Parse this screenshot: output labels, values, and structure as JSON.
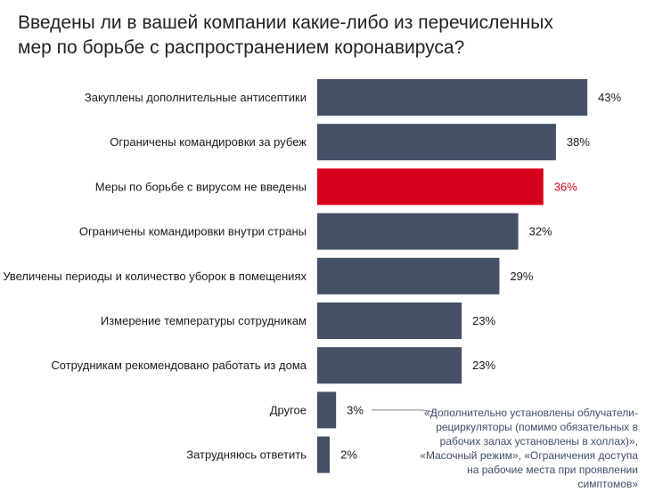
{
  "chart_data": {
    "type": "bar",
    "orientation": "horizontal",
    "title": "Введены ли в вашей компании какие-либо из перечисленных мер по борьбе с распространением коронавируса?",
    "categories": [
      "Закуплены дополнительные антисептики",
      "Ограничены командировки за рубеж",
      "Меры по борьбе с вирусом не введены",
      "Ограничены командировки внутри страны",
      "Увеличены периоды и количество уборок в помещениях",
      "Измерение температуры сотрудникам",
      "Сотрудникам рекомендовано работать из дома",
      "Другое",
      "Затрудняюсь ответить"
    ],
    "values": [
      43,
      38,
      36,
      32,
      29,
      23,
      23,
      3,
      2
    ],
    "value_labels": [
      "43%",
      "38%",
      "36%",
      "32%",
      "29%",
      "23%",
      "23%",
      "3%",
      "2%"
    ],
    "highlight_index": 2,
    "colors": {
      "bar": "#435066",
      "highlight": "#d6001c",
      "highlight_label": "#d6001c",
      "annotation": "#3f4c6b"
    },
    "grid": false,
    "annotation": {
      "target_index": 7,
      "text": "«Дополнительно установлены облучатели-рециркуляторы (помимо обязательных в рабочих залах установлены в холлах)», «Масочный режим», «Ограничения доступа на рабочие места при проявлении симптомов»"
    }
  }
}
